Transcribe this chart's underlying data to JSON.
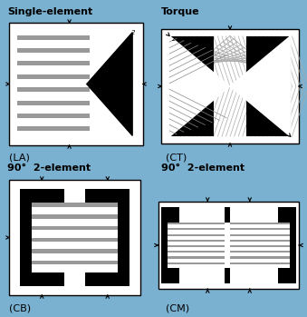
{
  "bg_color": "#7ab0d0",
  "white": "#ffffff",
  "black": "#000000",
  "gray": "#aaaaaa",
  "darkgray": "#666666",
  "title_fontsize": 8,
  "label_fontsize": 8,
  "titles": [
    "Single-element",
    "Torque",
    "90°  2-element",
    "90°  2-element"
  ],
  "labels": [
    "(LA)",
    "(CT)",
    "(CB)",
    "(CM)"
  ]
}
